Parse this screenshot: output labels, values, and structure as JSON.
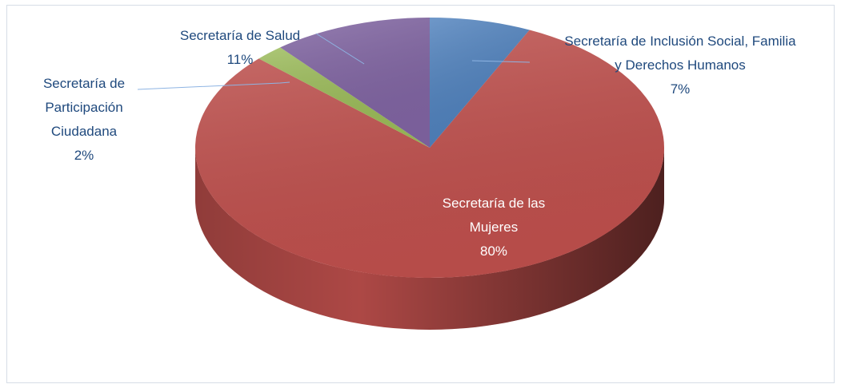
{
  "chart_data": {
    "type": "pie3d",
    "categories": [
      "Secretaría de Inclusión Social, Familia y Derechos Humanos",
      "Secretaría de las Mujeres",
      "Secretaría de Participación Ciudadana",
      "Secretaría de Salud"
    ],
    "values": [
      7,
      80,
      2,
      11
    ],
    "value_labels": [
      "7%",
      "80%",
      "2%",
      "11%"
    ],
    "colors": [
      "#4f81bd",
      "#c0504d",
      "#9bbb59",
      "#8064a2"
    ]
  }
}
